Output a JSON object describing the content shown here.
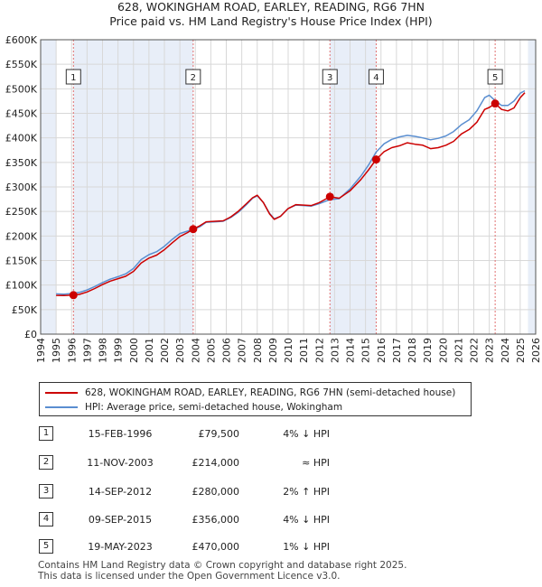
{
  "chart_data": {
    "type": "line",
    "title": "628, WOKINGHAM ROAD, EARLEY, READING, RG6 7HN",
    "subtitle": "Price paid vs. HM Land Registry's House Price Index (HPI)",
    "xlabel": "",
    "ylabel": "",
    "xlim": [
      1994,
      2026
    ],
    "ylim": [
      0,
      600000
    ],
    "x_ticks": [
      "1994",
      "1995",
      "1996",
      "1997",
      "1998",
      "1999",
      "2000",
      "2001",
      "2002",
      "2003",
      "2004",
      "2005",
      "2006",
      "2007",
      "2008",
      "2009",
      "2010",
      "2011",
      "2012",
      "2013",
      "2014",
      "2015",
      "2016",
      "2017",
      "2018",
      "2019",
      "2020",
      "2021",
      "2022",
      "2023",
      "2024",
      "2025",
      "2026"
    ],
    "y_ticks": [
      "£0",
      "£50K",
      "£100K",
      "£150K",
      "£200K",
      "£250K",
      "£300K",
      "£350K",
      "£400K",
      "£450K",
      "£500K",
      "£550K",
      "£600K"
    ],
    "data_start": 1995.0,
    "data_end": 2025.5,
    "series": [
      {
        "name": "628, WOKINGHAM ROAD, EARLEY, READING, RG6 7HN (semi-detached house)",
        "color": "#cc0000",
        "points": [
          [
            1995.0,
            79000
          ],
          [
            1995.5,
            78500
          ],
          [
            1996.12,
            79500
          ],
          [
            1996.5,
            81000
          ],
          [
            1997.0,
            86000
          ],
          [
            1997.5,
            93000
          ],
          [
            1998.0,
            101000
          ],
          [
            1998.5,
            108000
          ],
          [
            1999.0,
            113000
          ],
          [
            1999.5,
            118000
          ],
          [
            2000.0,
            128000
          ],
          [
            2000.5,
            145000
          ],
          [
            2001.0,
            155000
          ],
          [
            2001.5,
            161000
          ],
          [
            2002.0,
            172000
          ],
          [
            2002.5,
            186000
          ],
          [
            2003.0,
            199000
          ],
          [
            2003.5,
            207000
          ],
          [
            2003.86,
            214000
          ],
          [
            2004.3,
            221000
          ],
          [
            2004.7,
            229000
          ],
          [
            2005.3,
            230000
          ],
          [
            2005.8,
            231000
          ],
          [
            2006.3,
            239000
          ],
          [
            2006.8,
            251000
          ],
          [
            2007.3,
            266000
          ],
          [
            2007.7,
            278000
          ],
          [
            2008.0,
            283000
          ],
          [
            2008.4,
            268000
          ],
          [
            2008.8,
            245000
          ],
          [
            2009.1,
            234000
          ],
          [
            2009.5,
            240000
          ],
          [
            2010.0,
            256000
          ],
          [
            2010.5,
            264000
          ],
          [
            2011.0,
            263000
          ],
          [
            2011.5,
            262000
          ],
          [
            2012.0,
            268000
          ],
          [
            2012.7,
            280000
          ],
          [
            2013.3,
            277000
          ],
          [
            2014.0,
            292000
          ],
          [
            2014.7,
            315000
          ],
          [
            2015.2,
            335000
          ],
          [
            2015.69,
            356000
          ],
          [
            2016.2,
            372000
          ],
          [
            2016.7,
            380000
          ],
          [
            2017.2,
            384000
          ],
          [
            2017.7,
            390000
          ],
          [
            2018.2,
            387000
          ],
          [
            2018.7,
            385000
          ],
          [
            2019.2,
            378000
          ],
          [
            2019.7,
            380000
          ],
          [
            2020.2,
            385000
          ],
          [
            2020.7,
            393000
          ],
          [
            2021.2,
            408000
          ],
          [
            2021.7,
            417000
          ],
          [
            2022.2,
            432000
          ],
          [
            2022.7,
            458000
          ],
          [
            2023.0,
            462000
          ],
          [
            2023.38,
            470000
          ],
          [
            2023.8,
            458000
          ],
          [
            2024.2,
            455000
          ],
          [
            2024.6,
            461000
          ],
          [
            2025.0,
            482000
          ],
          [
            2025.3,
            492000
          ]
        ]
      },
      {
        "name": "HPI: Average price, semi-detached house, Wokingham",
        "color": "#5a8ed0",
        "points": [
          [
            1995.0,
            82000
          ],
          [
            1995.5,
            81500
          ],
          [
            1996.12,
            83000
          ],
          [
            1996.5,
            85000
          ],
          [
            1997.0,
            90000
          ],
          [
            1997.5,
            97000
          ],
          [
            1998.0,
            105000
          ],
          [
            1998.5,
            112000
          ],
          [
            1999.0,
            117000
          ],
          [
            1999.5,
            123000
          ],
          [
            2000.0,
            134000
          ],
          [
            2000.5,
            152000
          ],
          [
            2001.0,
            162000
          ],
          [
            2001.5,
            168000
          ],
          [
            2002.0,
            179000
          ],
          [
            2002.5,
            193000
          ],
          [
            2003.0,
            205000
          ],
          [
            2003.5,
            210000
          ],
          [
            2003.86,
            213000
          ],
          [
            2004.3,
            219000
          ],
          [
            2004.7,
            228000
          ],
          [
            2005.3,
            229000
          ],
          [
            2005.8,
            230000
          ],
          [
            2006.3,
            238000
          ],
          [
            2006.8,
            249000
          ],
          [
            2007.3,
            264000
          ],
          [
            2007.7,
            277000
          ],
          [
            2008.0,
            282000
          ],
          [
            2008.4,
            268000
          ],
          [
            2008.8,
            246000
          ],
          [
            2009.1,
            235000
          ],
          [
            2009.5,
            240000
          ],
          [
            2010.0,
            256000
          ],
          [
            2010.5,
            263000
          ],
          [
            2011.0,
            262000
          ],
          [
            2011.5,
            261000
          ],
          [
            2012.0,
            266000
          ],
          [
            2012.7,
            274000
          ],
          [
            2013.3,
            276000
          ],
          [
            2014.0,
            296000
          ],
          [
            2014.7,
            322000
          ],
          [
            2015.2,
            345000
          ],
          [
            2015.69,
            371000
          ],
          [
            2016.2,
            388000
          ],
          [
            2016.7,
            397000
          ],
          [
            2017.2,
            402000
          ],
          [
            2017.7,
            405000
          ],
          [
            2018.2,
            403000
          ],
          [
            2018.7,
            400000
          ],
          [
            2019.2,
            396000
          ],
          [
            2019.7,
            399000
          ],
          [
            2020.2,
            404000
          ],
          [
            2020.7,
            413000
          ],
          [
            2021.2,
            427000
          ],
          [
            2021.7,
            437000
          ],
          [
            2022.2,
            455000
          ],
          [
            2022.7,
            482000
          ],
          [
            2023.0,
            487000
          ],
          [
            2023.38,
            476000
          ],
          [
            2023.8,
            466000
          ],
          [
            2024.2,
            466000
          ],
          [
            2024.6,
            475000
          ],
          [
            2025.0,
            491000
          ],
          [
            2025.3,
            496000
          ]
        ]
      }
    ],
    "sales": [
      {
        "label": "1",
        "x": 1996.12,
        "price": 79500
      },
      {
        "label": "2",
        "x": 2003.86,
        "price": 214000
      },
      {
        "label": "3",
        "x": 2012.7,
        "price": 280000
      },
      {
        "label": "4",
        "x": 2015.69,
        "price": 356000
      },
      {
        "label": "5",
        "x": 2023.38,
        "price": 470000
      }
    ]
  },
  "legend": {
    "series1_label": "628, WOKINGHAM ROAD, EARLEY, READING, RG6 7HN (semi-detached house)",
    "series2_label": "HPI: Average price, semi-detached house, Wokingham",
    "series1_color": "#cc0000",
    "series2_color": "#5a8ed0"
  },
  "transactions": [
    {
      "num": "1",
      "date": "15-FEB-1996",
      "price": "£79,500",
      "rel": "4% ↓ HPI"
    },
    {
      "num": "2",
      "date": "11-NOV-2003",
      "price": "£214,000",
      "rel": "≈ HPI"
    },
    {
      "num": "3",
      "date": "14-SEP-2012",
      "price": "£280,000",
      "rel": "2% ↑ HPI"
    },
    {
      "num": "4",
      "date": "09-SEP-2015",
      "price": "£356,000",
      "rel": "4% ↓ HPI"
    },
    {
      "num": "5",
      "date": "19-MAY-2023",
      "price": "£470,000",
      "rel": "1% ↓ HPI"
    }
  ],
  "footer": {
    "line1": "Contains HM Land Registry data © Crown copyright and database right 2025.",
    "line2": "This data is licensed under the Open Government Licence v3.0."
  },
  "colors": {
    "shade": "#e8eef8",
    "grid": "#d8d8d8",
    "marker_line": "#e07070"
  }
}
